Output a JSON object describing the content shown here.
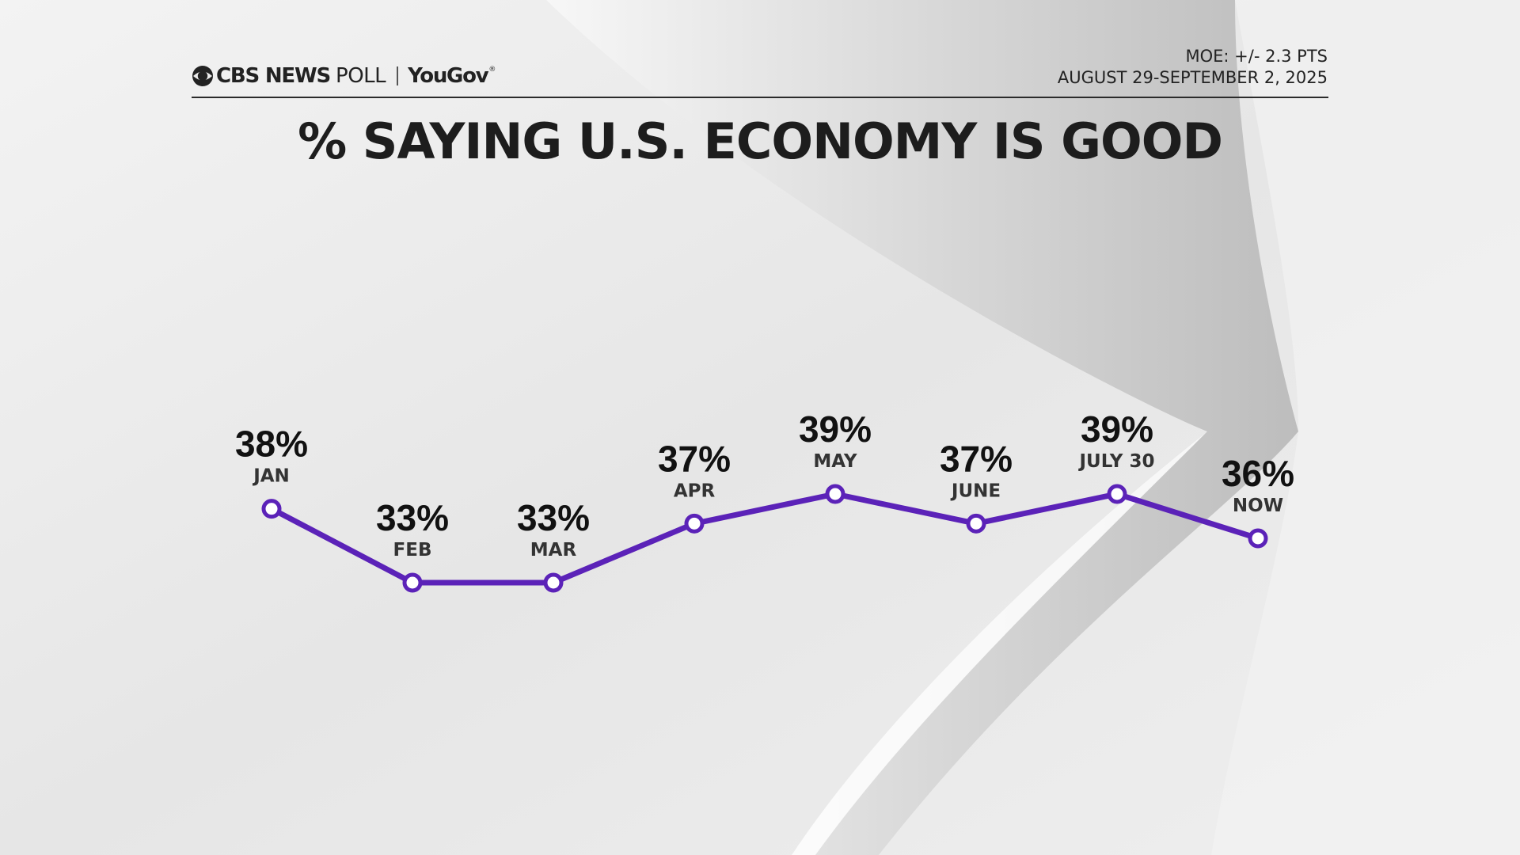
{
  "header": {
    "brand_name": "CBS NEWS",
    "brand_suffix": "POLL",
    "partner": "YouGov",
    "partner_mark": "®",
    "moe": "MOE: +/- 2.3 PTS",
    "dates": "AUGUST 29-SEPTEMBER 2, 2025"
  },
  "colors": {
    "line": "#5b22b8",
    "marker_fill": "#ffffff",
    "text": "#1d1d1d"
  },
  "icons": {
    "brand_logo": "cbs-eye-icon"
  },
  "chart_data": {
    "type": "line",
    "title": "% SAYING U.S. ECONOMY IS GOOD",
    "categories": [
      "JAN",
      "FEB",
      "MAR",
      "APR",
      "MAY",
      "JUNE",
      "JULY 30",
      "NOW"
    ],
    "values": [
      38,
      33,
      33,
      37,
      39,
      37,
      39,
      36
    ],
    "value_labels": [
      "38%",
      "33%",
      "33%",
      "37%",
      "39%",
      "37%",
      "39%",
      "36%"
    ],
    "unit": "%",
    "ylim": [
      30,
      42
    ],
    "grid": false,
    "legend": "none"
  }
}
